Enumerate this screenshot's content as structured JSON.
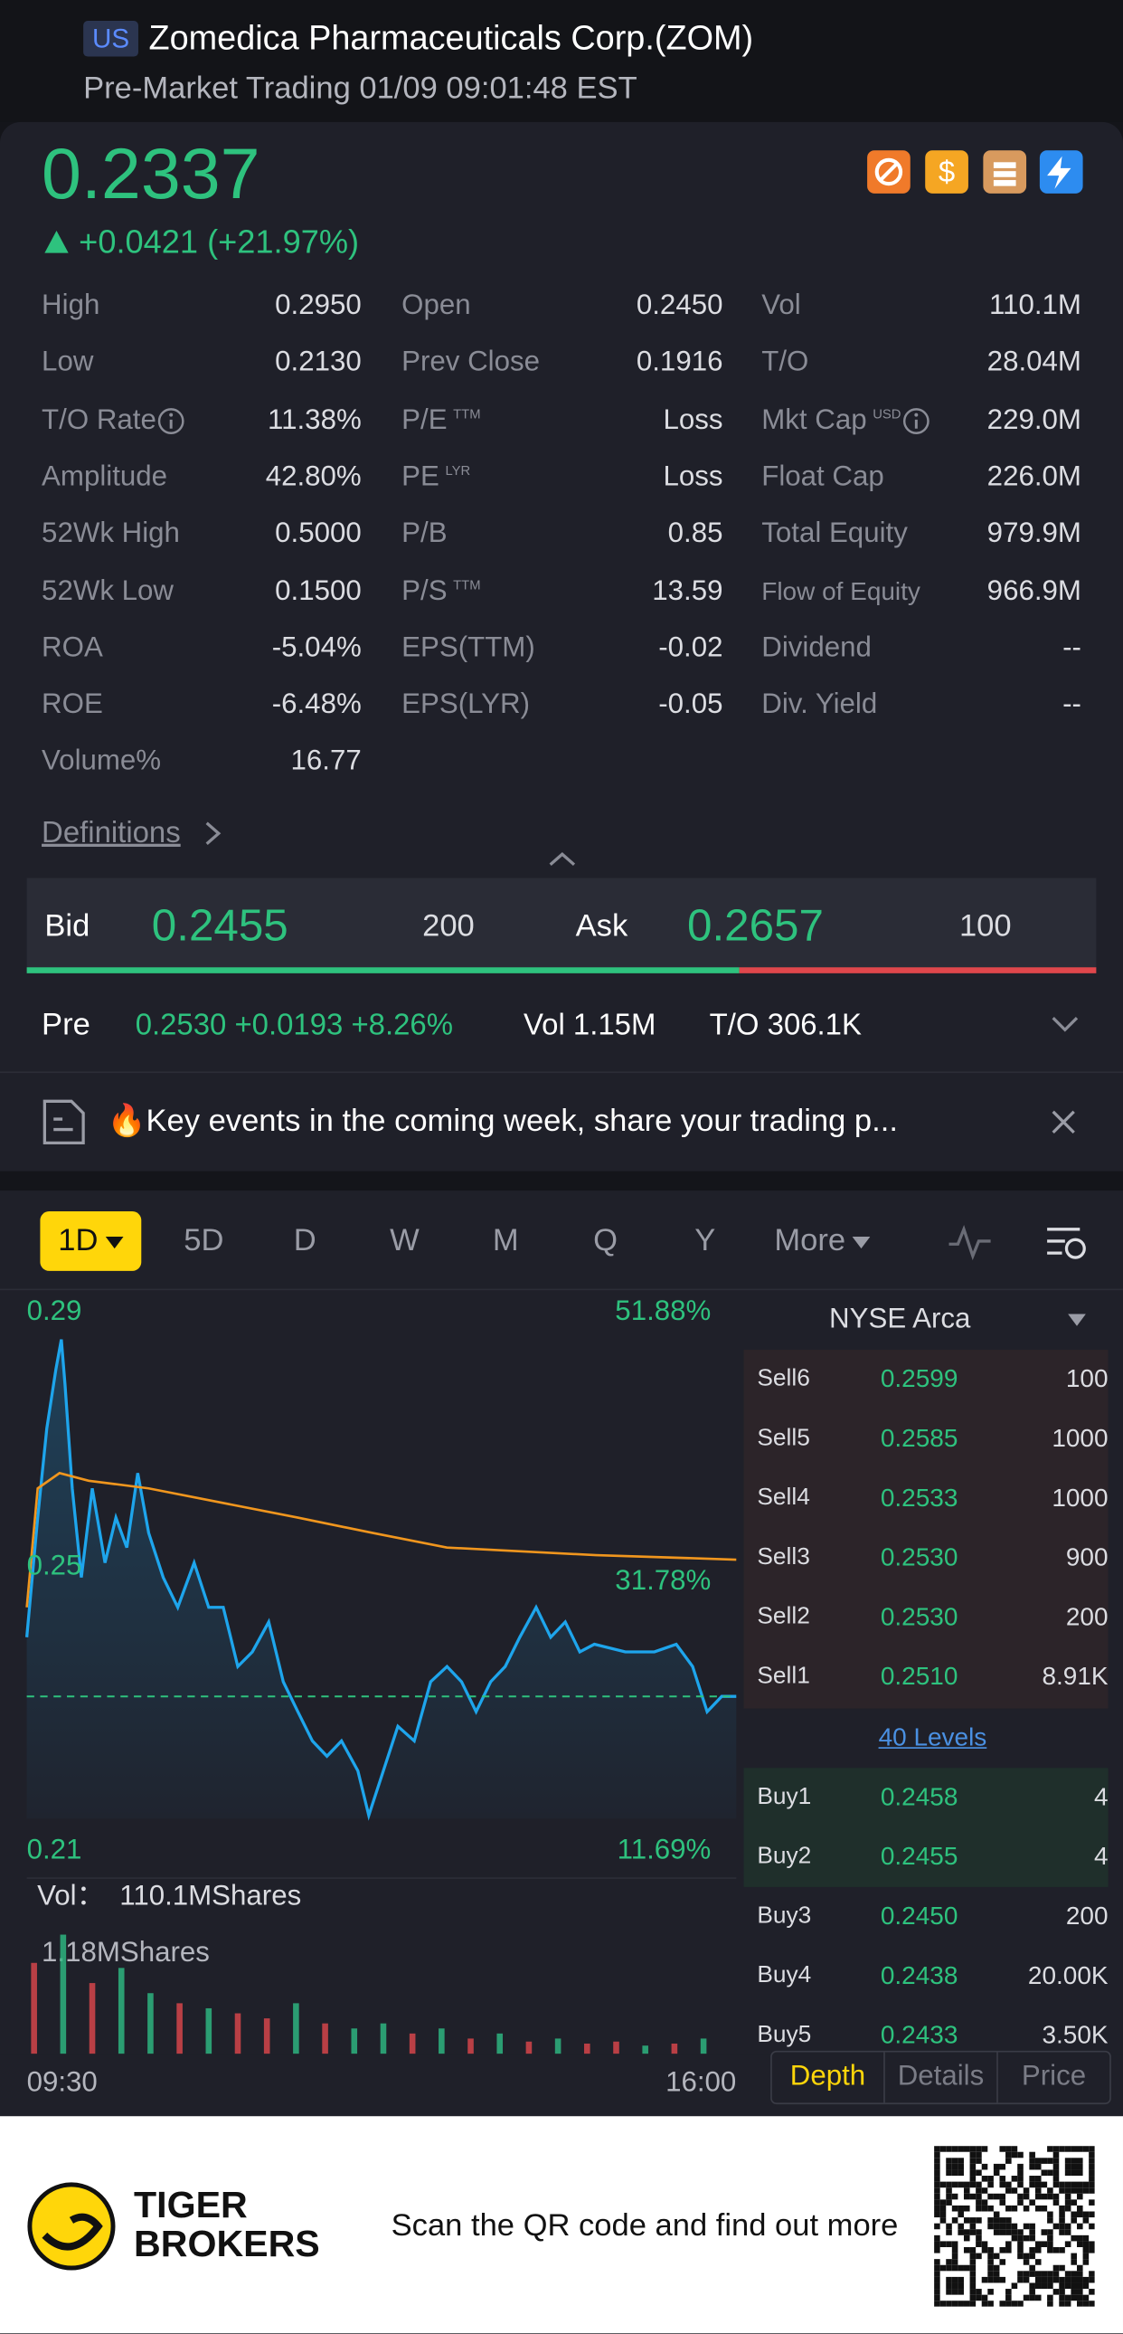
{
  "header": {
    "badge": "US",
    "title": "Zomedica Pharmaceuticals Corp.(ZOM)",
    "subtitle": "Pre-Market Trading 01/09 09:01:48 EST"
  },
  "quote": {
    "price": "0.2337",
    "change": "+0.0421 (+21.97%)"
  },
  "stats": [
    [
      {
        "label": "High",
        "value": "0.2950"
      },
      {
        "label": "Open",
        "value": "0.2450"
      },
      {
        "label": "Vol",
        "value": "110.1M"
      }
    ],
    [
      {
        "label": "Low",
        "value": "0.2130"
      },
      {
        "label": "Prev Close",
        "value": "0.1916"
      },
      {
        "label": "T/O",
        "value": "28.04M"
      }
    ],
    [
      {
        "label": "T/O Rate",
        "value": "11.38%",
        "info": true
      },
      {
        "label": "P/E",
        "sup": "TTM",
        "value": "Loss"
      },
      {
        "label": "Mkt Cap",
        "sup": "USD",
        "info": true,
        "value": "229.0M"
      }
    ],
    [
      {
        "label": "Amplitude",
        "value": "42.80%"
      },
      {
        "label": "PE",
        "sup": "LYR",
        "value": "Loss"
      },
      {
        "label": "Float Cap",
        "value": "226.0M"
      }
    ],
    [
      {
        "label": "52Wk High",
        "value": "0.5000"
      },
      {
        "label": "P/B",
        "value": "0.85"
      },
      {
        "label": "Total Equity",
        "value": "979.9M"
      }
    ],
    [
      {
        "label": "52Wk Low",
        "value": "0.1500"
      },
      {
        "label": "P/S",
        "sup": "TTM",
        "value": "13.59"
      },
      {
        "label": "Flow of Equity",
        "value": "966.9M"
      }
    ],
    [
      {
        "label": "ROA",
        "value": "-5.04%"
      },
      {
        "label": "EPS(TTM)",
        "value": "-0.02"
      },
      {
        "label": "Dividend",
        "value": "--"
      }
    ],
    [
      {
        "label": "ROE",
        "value": "-6.48%"
      },
      {
        "label": "EPS(LYR)",
        "value": "-0.05"
      },
      {
        "label": "Div. Yield",
        "value": "--"
      }
    ],
    [
      {
        "label": "Volume%",
        "value": "16.77"
      }
    ]
  ],
  "definitions": "Definitions",
  "bidask": {
    "bid_label": "Bid",
    "bid": "0.2455",
    "bid_size": "200",
    "ask_label": "Ask",
    "ask": "0.2657",
    "ask_size": "100"
  },
  "premarket": {
    "label": "Pre",
    "quote": "0.2530 +0.0193 +8.26%",
    "vol": "Vol 1.15M",
    "turnover": "T/O 306.1K"
  },
  "news": "🔥Key events in the coming week, share your trading p...",
  "tabs": [
    "1D",
    "5D",
    "D",
    "W",
    "M",
    "Q",
    "Y",
    "More"
  ],
  "chart_data": [
    {
      "type": "line",
      "xlim": [
        0,
        390
      ],
      "xticks": [
        {
          "value": 0,
          "label": "09:30"
        },
        {
          "value": 390,
          "label": "16:00"
        }
      ],
      "ylim": [
        0.21,
        0.29
      ],
      "yticks": [
        0.29,
        0.25,
        0.21
      ],
      "y2lim": [
        11.69,
        51.88
      ],
      "y2ticks": [
        {
          "value": 51.88,
          "label": "51.88%"
        },
        {
          "value": 31.78,
          "label": "31.78%"
        },
        {
          "value": 11.69,
          "label": "11.69%"
        }
      ],
      "reference": 0.2292,
      "series": [
        {
          "color": "#1ea5ec",
          "x": [
            0,
            6,
            11,
            16,
            19,
            21,
            25,
            30,
            36,
            43,
            49,
            55,
            61,
            67,
            75,
            83,
            92,
            100,
            108,
            116,
            124,
            133,
            141,
            149,
            157,
            165,
            173,
            182,
            188,
            196,
            204,
            213,
            222,
            231,
            239,
            247,
            255,
            263,
            271,
            280,
            288,
            296,
            304,
            312,
            329,
            345,
            357,
            366,
            374,
            382,
            390
          ],
          "values": [
            0.2385,
            0.2573,
            0.2713,
            0.2806,
            0.2853,
            0.2783,
            0.2619,
            0.2479,
            0.2619,
            0.2502,
            0.2573,
            0.2526,
            0.2643,
            0.2549,
            0.2479,
            0.2432,
            0.2502,
            0.2432,
            0.2432,
            0.2339,
            0.2362,
            0.2409,
            0.2315,
            0.2268,
            0.2222,
            0.2198,
            0.2222,
            0.2175,
            0.2105,
            0.2175,
            0.2245,
            0.2222,
            0.2315,
            0.2339,
            0.2315,
            0.2268,
            0.2315,
            0.2339,
            0.2385,
            0.2432,
            0.2385,
            0.2409,
            0.2362,
            0.2374,
            0.2362,
            0.2362,
            0.2374,
            0.2339,
            0.2268,
            0.2292,
            0.2292
          ]
        },
        {
          "color": "#f0961e",
          "x": [
            0,
            6,
            18,
            34,
            67,
            149,
            190,
            231,
            313,
            390
          ],
          "values": [
            0.2432,
            0.2619,
            0.2643,
            0.2631,
            0.2619,
            0.2573,
            0.2549,
            0.2526,
            0.2514,
            0.2507
          ]
        }
      ]
    },
    {
      "type": "bar",
      "label": "Vol：",
      "total": "110.1MShares",
      "ylim": [
        0,
        1.18
      ],
      "yticks": [
        {
          "value": 1.18,
          "label": "1.18MShares"
        }
      ],
      "xlim": [
        0,
        390
      ],
      "x": [
        4,
        20,
        36,
        52,
        68,
        84,
        100,
        116,
        132,
        148,
        164,
        180,
        196,
        212,
        228,
        244,
        260,
        276,
        292,
        308,
        324,
        340,
        356,
        372
      ],
      "values": [
        0.9,
        1.18,
        0.7,
        0.85,
        0.6,
        0.5,
        0.45,
        0.4,
        0.35,
        0.5,
        0.3,
        0.25,
        0.3,
        0.2,
        0.25,
        0.15,
        0.2,
        0.12,
        0.15,
        0.1,
        0.12,
        0.08,
        0.1,
        0.15
      ],
      "colors": [
        "#e0474c",
        "#2ebd85",
        "#e0474c",
        "#2ebd85",
        "#2ebd85",
        "#e0474c",
        "#2ebd85",
        "#e0474c",
        "#e0474c",
        "#2ebd85",
        "#e0474c",
        "#2ebd85",
        "#2ebd85",
        "#e0474c",
        "#2ebd85",
        "#e0474c",
        "#2ebd85",
        "#e0474c",
        "#2ebd85",
        "#e0474c",
        "#e0474c",
        "#2ebd85",
        "#e0474c",
        "#2ebd85"
      ]
    }
  ],
  "book": {
    "exchange": "NYSE Arca",
    "asks": [
      [
        "Sell6",
        "0.2599",
        "100"
      ],
      [
        "Sell5",
        "0.2585",
        "1000"
      ],
      [
        "Sell4",
        "0.2533",
        "1000"
      ],
      [
        "Sell3",
        "0.2530",
        "900"
      ],
      [
        "Sell2",
        "0.2530",
        "200"
      ],
      [
        "Sell1",
        "0.2510",
        "8.91K"
      ]
    ],
    "levels": "40 Levels",
    "bids": [
      [
        "Buy1",
        "0.2458",
        "4"
      ],
      [
        "Buy2",
        "0.2455",
        "4"
      ],
      [
        "Buy3",
        "0.2450",
        "200"
      ],
      [
        "Buy4",
        "0.2438",
        "20.00K"
      ],
      [
        "Buy5",
        "0.2433",
        "3.50K"
      ]
    ],
    "tabs": [
      "Depth",
      "Details",
      "Price"
    ]
  },
  "footer": {
    "brand": [
      "TIGER",
      "BROKERS"
    ],
    "cta": "Scan the QR code and find out more"
  }
}
